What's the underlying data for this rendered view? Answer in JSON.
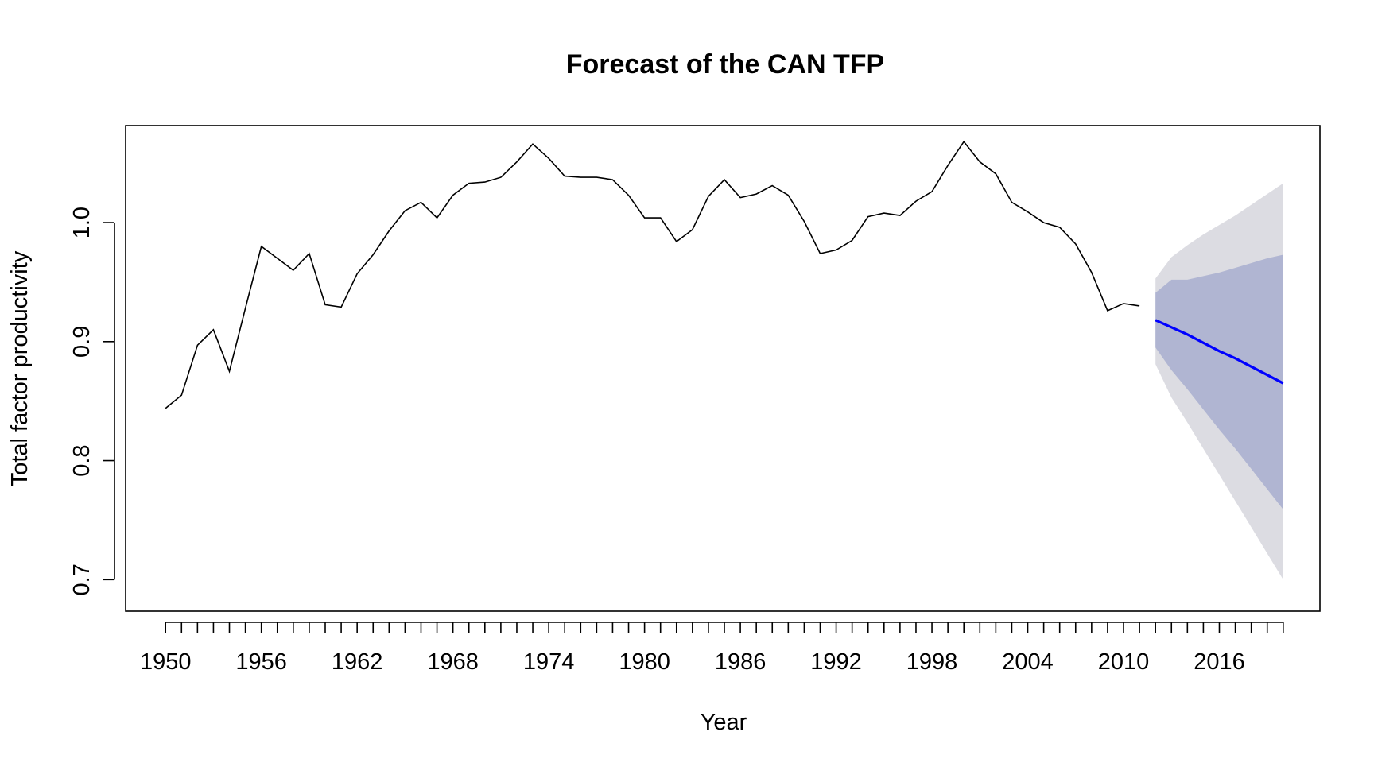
{
  "chart_data": {
    "type": "line",
    "title": "Forecast of the CAN TFP",
    "xlabel": "Year",
    "ylabel": "Total factor productivity",
    "xlim": [
      1947.5,
      2022.3
    ],
    "ylim": [
      0.6735,
      1.0815
    ],
    "x_ticks": [
      1950,
      1956,
      1962,
      1968,
      1974,
      1980,
      1986,
      1992,
      1998,
      2004,
      2010,
      2016
    ],
    "y_ticks": [
      "0.7",
      "0.8",
      "0.9",
      "1.0"
    ],
    "y_tick_values": [
      0.7,
      0.8,
      0.9,
      1.0
    ],
    "minor_x_ticks_from": 1950,
    "minor_x_ticks_to": 2020,
    "grid": false,
    "colors": {
      "history": "#000000",
      "forecast": "#0000ff",
      "band_95": "#dcdce2",
      "band_80": "#b0b5d2"
    },
    "series": [
      {
        "role": "history",
        "x": [
          1950,
          1951,
          1952,
          1953,
          1954,
          1955,
          1956,
          1957,
          1958,
          1959,
          1960,
          1961,
          1962,
          1963,
          1964,
          1965,
          1966,
          1967,
          1968,
          1969,
          1970,
          1971,
          1972,
          1973,
          1974,
          1975,
          1976,
          1977,
          1978,
          1979,
          1980,
          1981,
          1982,
          1983,
          1984,
          1985,
          1986,
          1987,
          1988,
          1989,
          1990,
          1991,
          1992,
          1993,
          1994,
          1995,
          1996,
          1997,
          1998,
          1999,
          2000,
          2001,
          2002,
          2003,
          2004,
          2005,
          2006,
          2007,
          2008,
          2009,
          2010,
          2011
        ],
        "values": [
          0.844,
          0.855,
          0.897,
          0.91,
          0.875,
          0.928,
          0.98,
          0.97,
          0.96,
          0.974,
          0.931,
          0.929,
          0.957,
          0.973,
          0.993,
          1.01,
          1.017,
          1.004,
          1.023,
          1.033,
          1.034,
          1.038,
          1.051,
          1.066,
          1.054,
          1.039,
          1.038,
          1.038,
          1.036,
          1.023,
          1.004,
          1.004,
          0.984,
          0.994,
          1.022,
          1.036,
          1.021,
          1.024,
          1.031,
          1.023,
          1.001,
          0.974,
          0.977,
          0.985,
          1.005,
          1.008,
          1.006,
          1.018,
          1.026,
          1.048,
          1.068,
          1.051,
          1.041,
          1.017,
          1.009,
          1.0,
          0.996,
          0.982,
          0.958,
          0.926,
          0.932,
          0.93
        ]
      },
      {
        "role": "forecast",
        "x": [
          2012,
          2013,
          2014,
          2015,
          2016,
          2017,
          2018,
          2019,
          2020
        ],
        "values": [
          0.918,
          0.912,
          0.906,
          0.899,
          0.892,
          0.886,
          0.879,
          0.872,
          0.865
        ],
        "lower_80": [
          0.895,
          0.876,
          0.86,
          0.843,
          0.826,
          0.81,
          0.793,
          0.776,
          0.759
        ],
        "upper_80": [
          0.941,
          0.952,
          0.952,
          0.955,
          0.958,
          0.962,
          0.966,
          0.97,
          0.973
        ],
        "lower_95": [
          0.881,
          0.853,
          0.832,
          0.81,
          0.788,
          0.766,
          0.744,
          0.722,
          0.7
        ],
        "upper_95": [
          0.953,
          0.971,
          0.981,
          0.99,
          0.998,
          1.006,
          1.015,
          1.024,
          1.033
        ]
      }
    ]
  }
}
